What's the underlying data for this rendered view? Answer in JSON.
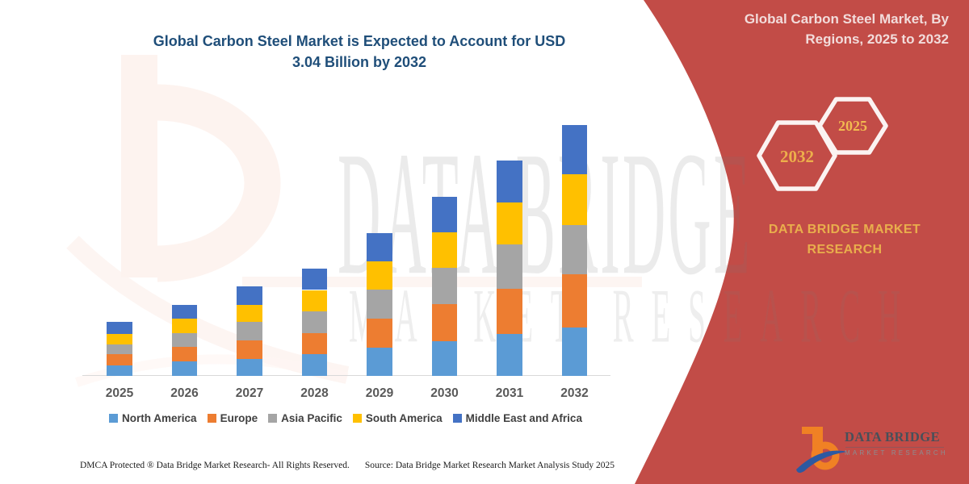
{
  "page": {
    "background": "#FFFFFF",
    "red_panel_color": "#C24C47"
  },
  "chart": {
    "title_line1": "Global Carbon Steel Market is Expected to Account for USD",
    "title_line2": "3.04 Billion by 2032",
    "title_color": "#1F4E79"
  },
  "chart_data": {
    "type": "bar",
    "stacked": true,
    "unit": "USD Billion",
    "title": "Global Carbon Steel Market is Expected to Account for USD 3.04 Billion by 2032",
    "categories": [
      "2025",
      "2026",
      "2027",
      "2028",
      "2029",
      "2030",
      "2031",
      "2032"
    ],
    "series": [
      {
        "name": "North America",
        "color": "#5B9BD5",
        "values": [
          0.13,
          0.18,
          0.21,
          0.26,
          0.34,
          0.42,
          0.51,
          0.59
        ]
      },
      {
        "name": "Europe",
        "color": "#ED7D31",
        "values": [
          0.13,
          0.17,
          0.22,
          0.26,
          0.35,
          0.45,
          0.54,
          0.64
        ]
      },
      {
        "name": "Asia Pacific",
        "color": "#A5A5A5",
        "values": [
          0.12,
          0.17,
          0.22,
          0.26,
          0.35,
          0.44,
          0.54,
          0.6
        ]
      },
      {
        "name": "South America",
        "color": "#FFC000",
        "values": [
          0.13,
          0.17,
          0.21,
          0.26,
          0.35,
          0.43,
          0.51,
          0.61
        ]
      },
      {
        "name": "Middle East and Africa",
        "color": "#4472C4",
        "values": [
          0.14,
          0.17,
          0.22,
          0.26,
          0.34,
          0.43,
          0.51,
          0.6
        ]
      }
    ],
    "totals": [
      0.65,
      0.86,
      1.08,
      1.3,
      1.73,
      2.17,
      2.61,
      3.04
    ],
    "xlabel": "",
    "ylabel": "",
    "y_axis_visible": false,
    "grid": false,
    "legend_position": "bottom"
  },
  "right_panel": {
    "title_line1": "Global Carbon Steel Market, By",
    "title_line2": "Regions, 2025 to 2032",
    "hex_large_label": "2032",
    "hex_small_label": "2025",
    "brand_line1": "DATA BRIDGE MARKET",
    "brand_line2": "RESEARCH",
    "gold_color": "#E9AE4C"
  },
  "logo": {
    "name_top": "DATA BRIDGE",
    "name_bottom": "MARKET RESEARCH"
  },
  "footer": {
    "dmca": "DMCA Protected ® Data Bridge Market Research-  All Rights Reserved.",
    "source": "Source: Data Bridge Market Research  Market Analysis Study 2025"
  },
  "watermark": {
    "text_line1": "DATA BRIDGE",
    "text_line2": "MARKET RESEARCH"
  }
}
